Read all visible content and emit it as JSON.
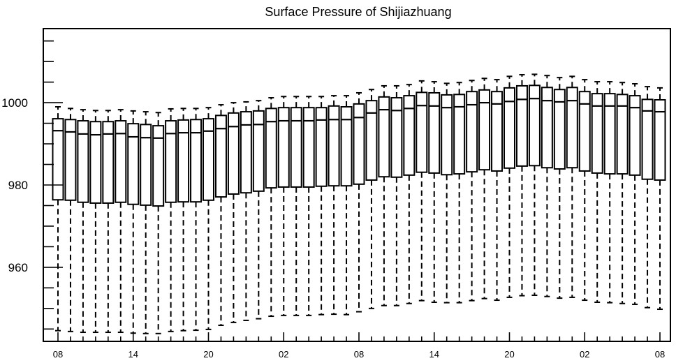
{
  "chart_data": {
    "type": "box",
    "title": "Surface Pressure of Shijiazhuang",
    "ylim": [
      942,
      1018
    ],
    "yticks": [
      {
        "value": 1000,
        "label": "1000"
      },
      {
        "value": 980,
        "label": "980"
      },
      {
        "value": 960,
        "label": "960"
      }
    ],
    "xtick_labels": [
      "08",
      "14",
      "20",
      "02",
      "08",
      "14",
      "20",
      "02",
      "08"
    ],
    "hours": [
      8,
      9,
      10,
      11,
      12,
      13,
      14,
      15,
      16,
      17,
      18,
      19,
      20,
      21,
      22,
      23,
      0,
      1,
      2,
      3,
      4,
      5,
      6,
      7,
      8,
      9,
      10,
      11,
      12,
      13,
      14,
      15,
      16,
      17,
      18,
      19,
      20,
      21,
      22,
      23,
      0,
      1,
      2,
      3,
      4,
      5,
      6,
      7,
      8
    ],
    "upper": [
      999.0,
      998.6,
      998.3,
      998.1,
      998.1,
      998.3,
      998.0,
      997.8,
      997.6,
      998.5,
      998.6,
      998.6,
      998.8,
      999.5,
      1000.0,
      1000.2,
      1000.5,
      1001.2,
      1001.5,
      1001.5,
      1001.5,
      1001.5,
      1001.7,
      1001.7,
      1002.4,
      1003.2,
      1004.1,
      1004.1,
      1004.4,
      1005.3,
      1005.1,
      1004.7,
      1004.9,
      1005.4,
      1005.9,
      1005.6,
      1006.4,
      1006.8,
      1006.9,
      1006.6,
      1006.1,
      1006.4,
      1005.6,
      1005.1,
      1005.1,
      1004.9,
      1004.6,
      1003.9,
      1003.6
    ],
    "q3": [
      996.1,
      995.9,
      995.6,
      995.4,
      995.4,
      995.6,
      994.9,
      994.7,
      994.4,
      995.6,
      995.8,
      995.9,
      996.1,
      996.9,
      997.5,
      997.8,
      998.0,
      998.6,
      998.8,
      998.8,
      998.8,
      998.8,
      999.2,
      999.0,
      999.7,
      1000.5,
      1001.4,
      1001.2,
      1001.7,
      1002.5,
      1002.4,
      1001.9,
      1002.0,
      1002.7,
      1003.1,
      1002.7,
      1003.6,
      1004.1,
      1004.2,
      1003.7,
      1003.2,
      1003.7,
      1002.7,
      1002.2,
      1002.2,
      1002.0,
      1001.7,
      1000.8,
      1000.7
    ],
    "median": [
      993.2,
      992.9,
      992.4,
      992.2,
      992.4,
      992.5,
      991.7,
      991.5,
      991.4,
      992.5,
      992.7,
      992.7,
      993.1,
      993.7,
      994.2,
      994.6,
      994.7,
      995.4,
      995.6,
      995.6,
      995.6,
      995.8,
      995.9,
      995.9,
      996.4,
      997.5,
      998.3,
      998.1,
      998.6,
      999.3,
      999.2,
      998.8,
      999.0,
      999.5,
      1000.0,
      999.7,
      1000.3,
      1000.8,
      1001.0,
      1000.5,
      1000.2,
      1000.5,
      999.7,
      999.2,
      999.2,
      999.2,
      998.8,
      998.0,
      997.8
    ],
    "q1": [
      976.4,
      976.3,
      975.8,
      975.6,
      975.6,
      975.8,
      975.3,
      975.1,
      974.9,
      975.8,
      975.9,
      975.9,
      976.3,
      977.1,
      977.8,
      978.1,
      978.5,
      979.3,
      979.5,
      979.5,
      979.5,
      979.7,
      979.8,
      979.8,
      980.2,
      981.2,
      982.0,
      981.9,
      982.4,
      983.1,
      982.9,
      982.5,
      982.7,
      983.2,
      983.7,
      983.4,
      984.1,
      984.6,
      984.7,
      984.2,
      983.9,
      984.2,
      983.4,
      982.9,
      982.7,
      982.7,
      982.4,
      981.4,
      981.2
    ],
    "lower": [
      944.6,
      944.4,
      944.2,
      944.2,
      944.2,
      944.2,
      944.0,
      943.9,
      943.9,
      944.4,
      944.6,
      944.7,
      944.9,
      945.9,
      946.6,
      947.1,
      947.5,
      948.1,
      948.3,
      948.3,
      948.3,
      948.5,
      948.6,
      948.5,
      949.2,
      950.0,
      950.7,
      950.7,
      951.2,
      951.9,
      951.5,
      951.4,
      951.4,
      951.9,
      952.4,
      952.0,
      952.7,
      953.1,
      953.2,
      952.9,
      952.5,
      952.7,
      952.0,
      951.5,
      951.4,
      951.2,
      951.0,
      950.2,
      949.8
    ],
    "grid": false,
    "legend": "none"
  }
}
